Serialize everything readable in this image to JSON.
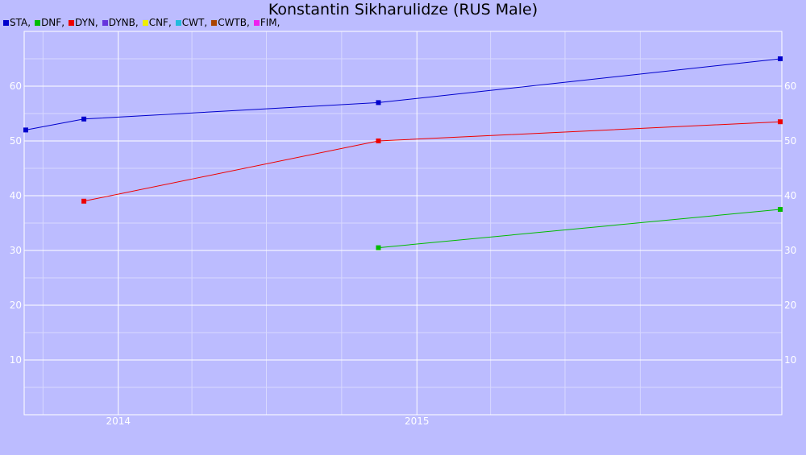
{
  "chart_data": {
    "type": "line",
    "title": "Konstantin Sikharulidze (RUS Male)",
    "legend": [
      {
        "name": "STA",
        "color": "#0000cc"
      },
      {
        "name": "DNF",
        "color": "#00bb00"
      },
      {
        "name": "DYN",
        "color": "#ee0000"
      },
      {
        "name": "DYNB",
        "color": "#6633dd"
      },
      {
        "name": "CNF",
        "color": "#eeee00"
      },
      {
        "name": "CWT",
        "color": "#22bbdd"
      },
      {
        "name": "CWTB",
        "color": "#aa4400"
      },
      {
        "name": "FIM",
        "color": "#ee22ee"
      }
    ],
    "legend_separator": ",",
    "x_axis": {
      "type": "date",
      "range": [
        "2013-09-08",
        "2016-03-22"
      ],
      "ticks": [
        {
          "label": "2014",
          "date": "2014-01-01"
        },
        {
          "label": "2015",
          "date": "2015-01-01"
        }
      ]
    },
    "y_axis": {
      "range": [
        0,
        70
      ],
      "ticks": [
        10,
        20,
        30,
        40,
        50,
        60
      ],
      "minor_ticks": [
        5,
        15,
        25,
        35,
        45,
        55,
        65
      ]
    },
    "grid": true,
    "series": [
      {
        "name": "STA",
        "color": "#0000cc",
        "points": [
          {
            "x": "2013-09-10",
            "y": 52
          },
          {
            "x": "2013-11-20",
            "y": 54
          },
          {
            "x": "2014-11-15",
            "y": 57
          },
          {
            "x": "2016-03-20",
            "y": 65
          }
        ]
      },
      {
        "name": "DNF",
        "color": "#00bb00",
        "points": [
          {
            "x": "2014-11-15",
            "y": 30.5
          },
          {
            "x": "2016-03-20",
            "y": 37.5
          }
        ]
      },
      {
        "name": "DYN",
        "color": "#ee0000",
        "points": [
          {
            "x": "2013-11-20",
            "y": 39
          },
          {
            "x": "2014-11-15",
            "y": 50
          },
          {
            "x": "2016-03-20",
            "y": 53.5
          }
        ]
      }
    ]
  }
}
